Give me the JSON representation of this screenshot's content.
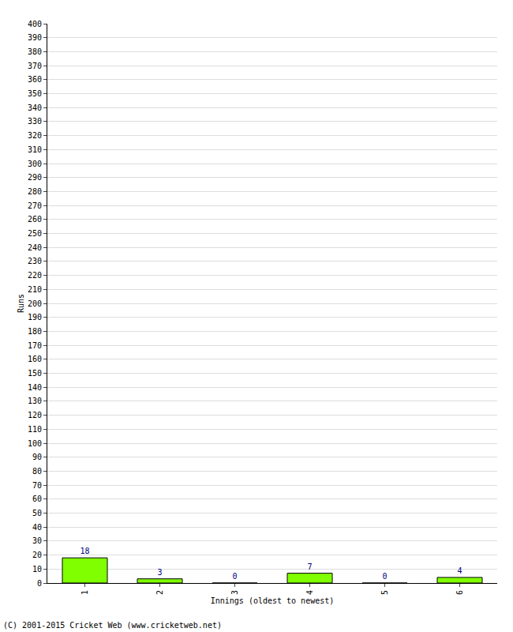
{
  "chart_data": {
    "type": "bar",
    "categories": [
      "1",
      "2",
      "3",
      "4",
      "5",
      "6"
    ],
    "values": [
      18,
      3,
      0,
      7,
      0,
      4
    ],
    "color": "#80ff00",
    "x_label": "Innings (oldest to newest)",
    "y_label": "Runs",
    "annotation": "(C) 2001-2015 Cricket Web (www.cricketweb.net)",
    "ylim": [
      0,
      400
    ],
    "yticks": [
      0,
      10,
      20,
      30,
      40,
      50,
      60,
      70,
      80,
      90,
      100,
      110,
      120,
      130,
      140,
      150,
      160,
      170,
      180,
      190,
      200,
      210,
      220,
      230,
      240,
      250,
      260,
      270,
      280,
      290,
      300,
      310,
      320,
      330,
      340,
      350,
      360,
      370,
      380,
      390,
      400
    ],
    "grid": true,
    "data_labels": true
  }
}
